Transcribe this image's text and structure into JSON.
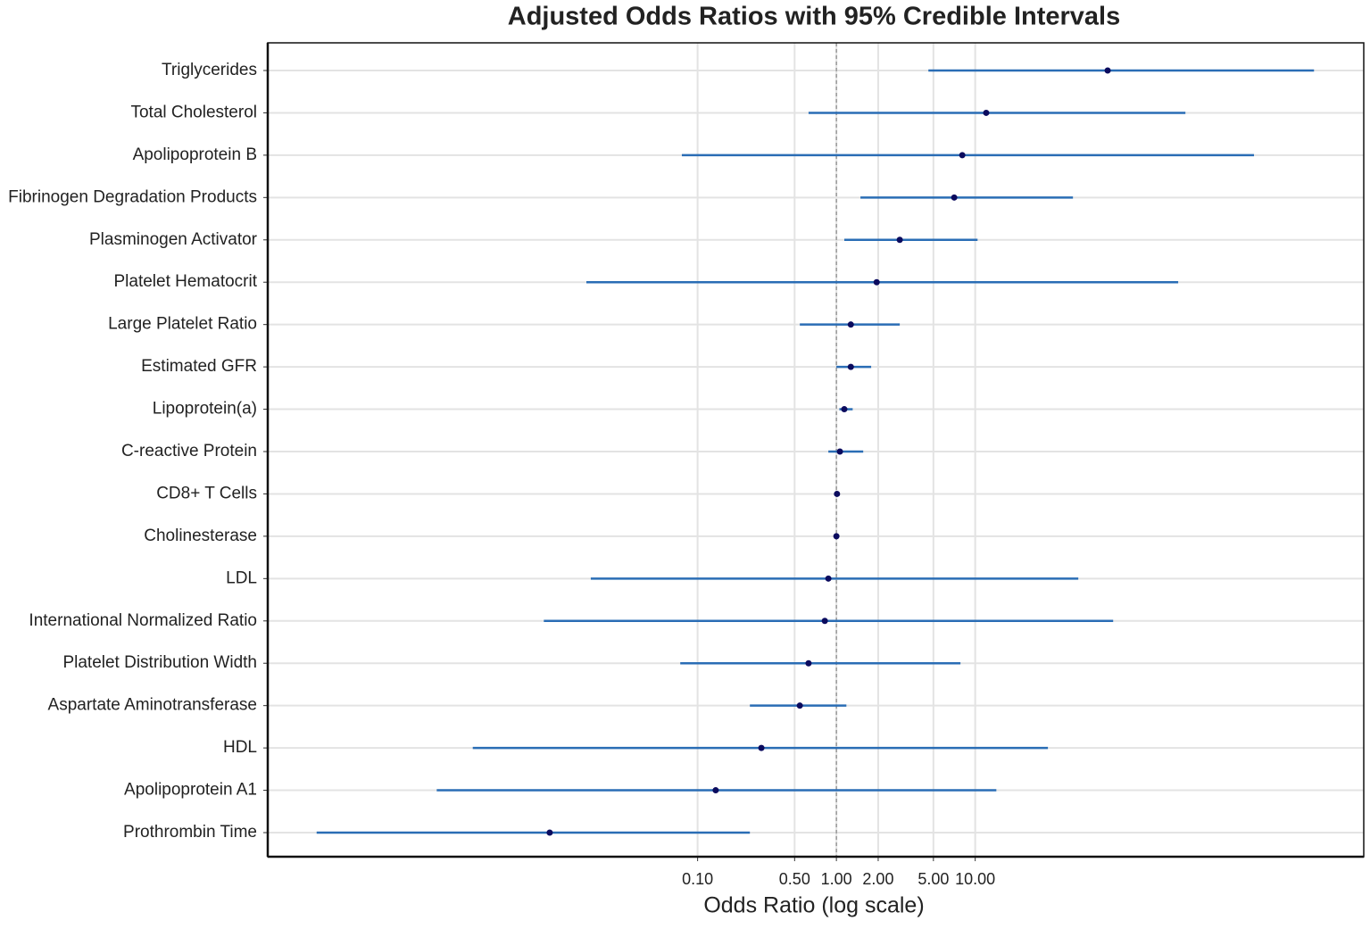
{
  "chart_data": {
    "type": "forest",
    "title": "Adjusted Odds Ratios with 95% Credible Intervals",
    "x_label": "Odds Ratio (log scale)",
    "log_scale": true,
    "grid": true,
    "ref_line": 1,
    "line_color": "#2a6db5",
    "point_color": "#0b0b5e",
    "categories": [
      "Triglycerides",
      "Total Cholesterol",
      "Apolipoprotein B",
      "Fibrinogen Degradation Products",
      "Plasminogen Activator",
      "Platelet Hematocrit",
      "Large Platelet Ratio",
      "Estimated GFR",
      "Lipoprotein(a)",
      "C-reactive Protein",
      "CD8+ T Cells",
      "Cholinesterase",
      "LDL",
      "International Normalized Ratio",
      "Platelet Distribution Width",
      "Aspartate Aminotransferase",
      "HDL",
      "Apolipoprotein A1",
      "Prothrombin Time"
    ],
    "estimates": [
      90,
      12,
      8.07,
      7.06,
      2.86,
      1.95,
      1.27,
      1.27,
      1.14,
      1.06,
      1.01,
      1.0,
      0.875,
      0.825,
      0.63,
      0.545,
      0.288,
      0.135,
      0.0086
    ],
    "lower": [
      4.6,
      0.63,
      0.077,
      1.49,
      1.14,
      0.0158,
      0.545,
      1.0,
      1.05,
      0.875,
      0.99,
      0.99,
      0.017,
      0.0078,
      0.075,
      0.238,
      0.0024,
      0.00132,
      0.00018
    ],
    "upper": [
      2760,
      327,
      1020,
      50.6,
      10.4,
      290,
      2.86,
      1.78,
      1.31,
      1.56,
      1.03,
      1.01,
      55.3,
      98.6,
      7.83,
      1.18,
      33.4,
      14.2,
      0.238
    ],
    "xlim": [
      8e-05,
      6300
    ],
    "xticks": [
      {
        "value": 0.1,
        "label": "0.10"
      },
      {
        "value": 0.5,
        "label": "0.50"
      },
      {
        "value": 1,
        "label": "1.00"
      },
      {
        "value": 2,
        "label": "2.00"
      },
      {
        "value": 5,
        "label": "5.00"
      },
      {
        "value": 10,
        "label": "10.00"
      }
    ]
  }
}
